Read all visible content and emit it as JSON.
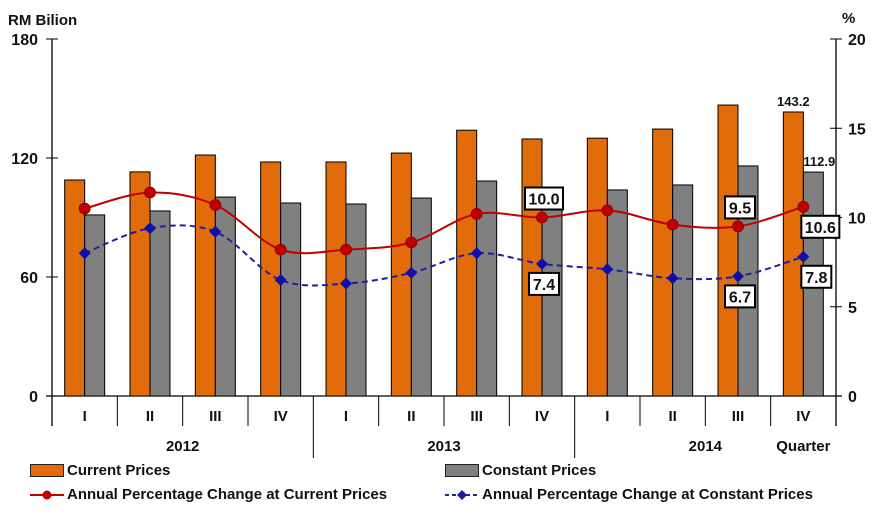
{
  "chart_data": {
    "type": "bar",
    "left_axis_label": "RM Bilion",
    "right_axis_label": "%",
    "left_ylim": [
      0,
      180
    ],
    "left_ticks": [
      "0",
      "60",
      "120",
      "180"
    ],
    "right_ylim": [
      0,
      20
    ],
    "right_ticks": [
      "0",
      "5",
      "10",
      "15",
      "20"
    ],
    "quarters": [
      "I",
      "II",
      "III",
      "IV",
      "I",
      "II",
      "III",
      "IV",
      "I",
      "II",
      "III",
      "IV"
    ],
    "years": [
      "2012",
      "2013",
      "2014"
    ],
    "x_axis_label": "Quarter",
    "series": [
      {
        "name": "Current Prices",
        "type": "bar",
        "axis": "left",
        "color": "#E36C0A",
        "values": [
          108.9,
          113.0,
          121.5,
          118.0,
          118.0,
          122.5,
          134.0,
          129.6,
          130.0,
          134.6,
          146.7,
          143.2
        ]
      },
      {
        "name": "Constant Prices",
        "type": "bar",
        "axis": "left",
        "color": "#808080",
        "values": [
          91.3,
          93.3,
          100.3,
          97.3,
          96.8,
          99.8,
          108.4,
          96.0,
          103.9,
          106.4,
          116.0,
          112.9
        ]
      },
      {
        "name": "Annual Percentage Change at Current Prices",
        "type": "line",
        "axis": "right",
        "color": "#C00000",
        "values": [
          10.5,
          11.4,
          10.7,
          8.2,
          8.2,
          8.6,
          10.2,
          10.0,
          10.4,
          9.6,
          9.5,
          10.6
        ]
      },
      {
        "name": "Annual Percentage Change at Constant Prices",
        "type": "line",
        "axis": "right",
        "color": "#1F1FA0",
        "values": [
          8.0,
          9.4,
          9.2,
          6.5,
          6.3,
          6.9,
          8.0,
          7.4,
          7.1,
          6.6,
          6.7,
          7.8
        ]
      }
    ],
    "bar_labels": [
      {
        "text": "143.2",
        "series": 0,
        "index": 11
      },
      {
        "text": "112.9",
        "series": 1,
        "index": 11
      }
    ],
    "line_labels": [
      {
        "text": "10.0",
        "series": 2,
        "index": 7,
        "pos": "above"
      },
      {
        "text": "7.4",
        "series": 3,
        "index": 7,
        "pos": "below"
      },
      {
        "text": "9.5",
        "series": 2,
        "index": 10,
        "pos": "above"
      },
      {
        "text": "6.7",
        "series": 3,
        "index": 10,
        "pos": "below"
      },
      {
        "text": "10.6",
        "series": 2,
        "index": 11,
        "pos": "below"
      },
      {
        "text": "7.8",
        "series": 3,
        "index": 11,
        "pos": "below"
      }
    ],
    "legend": [
      "Current Prices",
      "Constant Prices",
      "Annual Percentage Change at Current Prices",
      "Annual Percentage Change at Constant Prices"
    ],
    "legend_position": "bottom",
    "grid": false
  }
}
